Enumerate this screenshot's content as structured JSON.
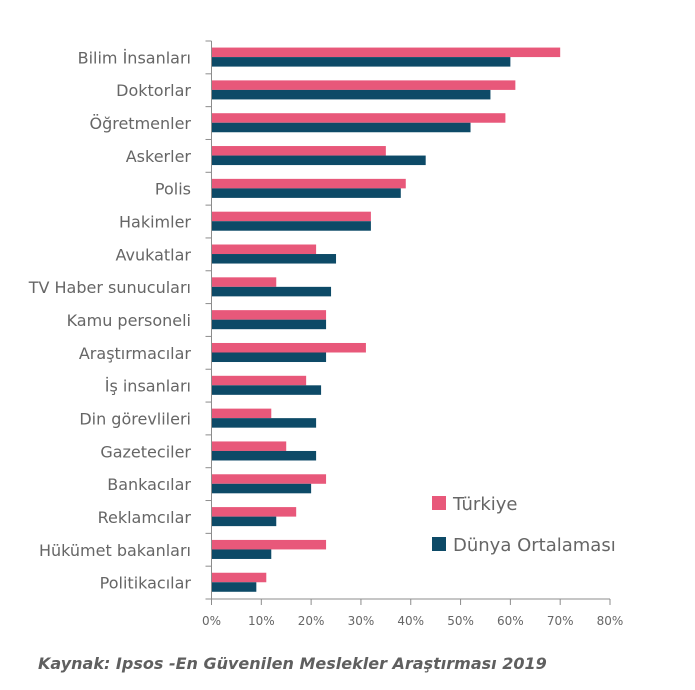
{
  "chart_data": {
    "type": "bar",
    "orientation": "horizontal",
    "title": "",
    "xlabel": "",
    "ylabel": "",
    "xlim": [
      0,
      80
    ],
    "x_ticks": [
      "0%",
      "10%",
      "20%",
      "30%",
      "40%",
      "50%",
      "60%",
      "70%",
      "80%"
    ],
    "x_tick_values": [
      0,
      10,
      20,
      30,
      40,
      50,
      60,
      70,
      80
    ],
    "grid": false,
    "legend_position": "right-lower",
    "categories": [
      "Bilim İnsanları",
      "Doktorlar",
      "Öğretmenler",
      "Askerler",
      "Polis",
      "Hakimler",
      "Avukatlar",
      "TV Haber sunucuları",
      "Kamu personeli",
      "Araştırmacılar",
      "İş insanları",
      "Din görevlileri",
      "Gazeteciler",
      "Bankacılar",
      "Reklamcılar",
      "Hükümet bakanları",
      "Politikacılar"
    ],
    "series": [
      {
        "name": "Türkiye",
        "color": "#e8587a",
        "values": [
          70,
          61,
          59,
          35,
          39,
          32,
          21,
          13,
          23,
          31,
          19,
          12,
          15,
          23,
          17,
          23,
          11
        ]
      },
      {
        "name": "Dünya Ortalaması",
        "color": "#0d4a67",
        "values": [
          60,
          56,
          52,
          43,
          38,
          32,
          25,
          24,
          23,
          23,
          22,
          21,
          21,
          20,
          13,
          12,
          9
        ]
      }
    ],
    "unit": "%"
  },
  "source_text": "Kaynak: Ipsos -En Güvenilen Meslekler Araştırması 2019",
  "colors": {
    "axis": "#8c8c8c",
    "text": "#666666"
  }
}
